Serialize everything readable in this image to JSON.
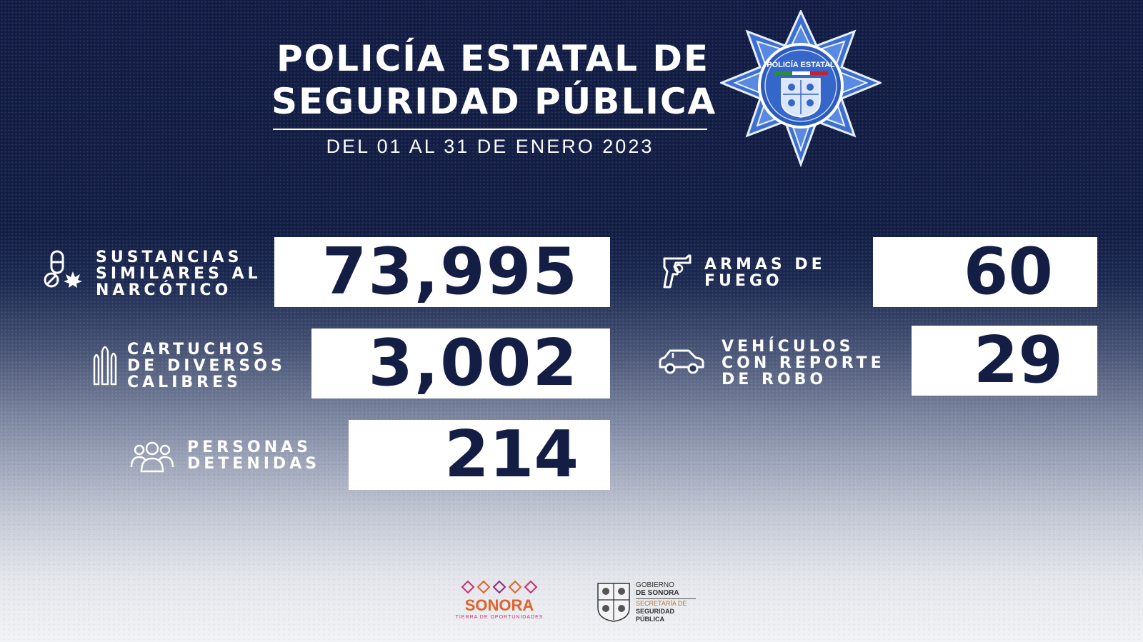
{
  "header": {
    "title_line1": "POLICÍA ESTATAL DE",
    "title_line2": "SEGURIDAD PÚBLICA",
    "period": "DEL 01 AL 31 DE ENERO 2023"
  },
  "badge": {
    "text": "POLICÍA ESTATAL",
    "icon": "police-star-badge-icon"
  },
  "stats": [
    {
      "label_lines": [
        "SUSTANCIAS",
        "SIMILARES AL",
        "NARCÓTICO"
      ],
      "value": "73,995",
      "icon": "pill-and-leaf-icon"
    },
    {
      "label_lines": [
        "ARMAS DE",
        "FUEGO"
      ],
      "value": "60",
      "icon": "revolver-icon"
    },
    {
      "label_lines": [
        "CARTUCHOS",
        "DE DIVERSOS",
        "CALIBRES"
      ],
      "value": "3,002",
      "icon": "bullets-icon"
    },
    {
      "label_lines": [
        "VEHÍCULOS",
        "CON REPORTE",
        "DE ROBO"
      ],
      "value": "29",
      "icon": "car-icon"
    },
    {
      "label_lines": [
        "PERSONAS",
        "DETENIDAS"
      ],
      "value": "214",
      "icon": "people-group-icon"
    }
  ],
  "footer": {
    "sonora_logo": {
      "name": "SONORA",
      "tagline": "TIERRA DE OPORTUNIDADES"
    },
    "gov_logo": {
      "line1": "GOBIERNO",
      "line2": "DE SONORA",
      "line3": "SECRETARÍA DE",
      "line4": "SEGURIDAD",
      "line5": "PÚBLICA"
    }
  },
  "colors": {
    "navy": "#141d44",
    "white": "#ffffff",
    "brand_orange": "#e0612b",
    "brand_pink": "#c7306f"
  }
}
